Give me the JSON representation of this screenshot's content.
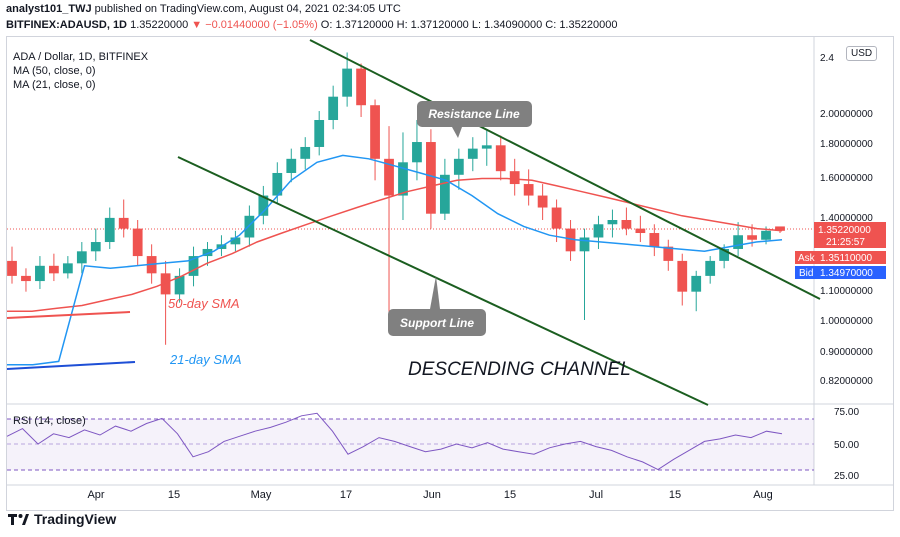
{
  "header": {
    "line1_user": "analyst101_TWJ",
    "line1_rest": " published on TradingView.com, August 04, 2021 02:34:05 UTC",
    "line2_symbol": "BITFINEX:ADAUSD, 1D",
    "line2_price": " 1.35220000 ",
    "line2_change": "▼ −0.01440000 (−1.05%)",
    "line2_ohlc": " O: 1.37120000 H: 1.37120000 L: 1.34090000 C: 1.35220000"
  },
  "legend": {
    "title": "ADA / Dollar, 1D, BITFINEX",
    "ma50": "MA (50, close, 0)",
    "ma21": "MA (21, close, 0)",
    "currency": "USD"
  },
  "annotations": {
    "resistance": "Resistance Line",
    "support": "Support Line",
    "sma50": "50-day SMA",
    "sma21": "21-day SMA",
    "channel": "DESCENDING CHANNEL"
  },
  "price_scale": {
    "ticks": [
      "2.4",
      "2.00000000",
      "1.80000000",
      "1.60000000",
      "1.40000000",
      "1.10000000",
      "1.00000000",
      "0.90000000",
      "0.82000000"
    ],
    "last_price": "1.35220000",
    "countdown": "21:25:57",
    "ask_label": "Ask",
    "ask_value": "1.35110000",
    "bid_label": "Bid",
    "bid_value": "1.34970000"
  },
  "rsi": {
    "label": "RSI (14, close)",
    "ticks": [
      "75.00",
      "50.00",
      "25.00"
    ]
  },
  "time_axis": [
    "Apr",
    "15",
    "May",
    "17",
    "Jun",
    "15",
    "Jul",
    "15",
    "Aug"
  ],
  "footer": {
    "brand": "TradingView"
  },
  "colors": {
    "up": "#26a69a",
    "down": "#ef5350",
    "ma50": "#ef5350",
    "ma21": "#2196f3",
    "channel": "#1b5e20",
    "rsi": "#7e57c2",
    "rsi_band": "#7e57c2"
  },
  "chart_data": {
    "type": "candlestick",
    "symbol": "BITFINEX:ADAUSD",
    "timeframe": "1D",
    "x_labels": [
      "Apr",
      "15",
      "May",
      "17",
      "Jun",
      "15",
      "Jul",
      "15",
      "Aug"
    ],
    "y_scale": "log",
    "last": {
      "open": 1.3712,
      "high": 1.3712,
      "low": 1.3409,
      "close": 1.3522,
      "change": -0.0144,
      "change_pct": -1.05
    },
    "ohlc_approx": [
      [
        1.22,
        1.28,
        1.13,
        1.16
      ],
      [
        1.16,
        1.19,
        1.1,
        1.14
      ],
      [
        1.14,
        1.24,
        1.11,
        1.2
      ],
      [
        1.2,
        1.25,
        1.14,
        1.17
      ],
      [
        1.17,
        1.24,
        1.15,
        1.21
      ],
      [
        1.21,
        1.3,
        1.17,
        1.26
      ],
      [
        1.26,
        1.36,
        1.22,
        1.3
      ],
      [
        1.3,
        1.46,
        1.27,
        1.41
      ],
      [
        1.41,
        1.5,
        1.32,
        1.36
      ],
      [
        1.36,
        1.4,
        1.2,
        1.24
      ],
      [
        1.24,
        1.29,
        1.13,
        1.17
      ],
      [
        1.17,
        1.22,
        0.92,
        1.09
      ],
      [
        1.09,
        1.19,
        1.06,
        1.16
      ],
      [
        1.16,
        1.28,
        1.12,
        1.24
      ],
      [
        1.24,
        1.3,
        1.2,
        1.27
      ],
      [
        1.27,
        1.33,
        1.24,
        1.29
      ],
      [
        1.29,
        1.35,
        1.26,
        1.32
      ],
      [
        1.32,
        1.47,
        1.28,
        1.42
      ],
      [
        1.42,
        1.57,
        1.38,
        1.52
      ],
      [
        1.52,
        1.7,
        1.48,
        1.64
      ],
      [
        1.64,
        1.78,
        1.59,
        1.72
      ],
      [
        1.72,
        1.85,
        1.66,
        1.79
      ],
      [
        1.79,
        2.02,
        1.74,
        1.96
      ],
      [
        1.96,
        2.2,
        1.9,
        2.12
      ],
      [
        2.12,
        2.46,
        2.05,
        2.33
      ],
      [
        2.33,
        2.37,
        1.98,
        2.06
      ],
      [
        2.06,
        2.1,
        1.6,
        1.72
      ],
      [
        1.72,
        1.92,
        0.98,
        1.52
      ],
      [
        1.52,
        1.88,
        1.4,
        1.7
      ],
      [
        1.7,
        1.96,
        1.6,
        1.82
      ],
      [
        1.82,
        1.9,
        1.36,
        1.43
      ],
      [
        1.43,
        1.72,
        1.4,
        1.63
      ],
      [
        1.63,
        1.78,
        1.55,
        1.72
      ],
      [
        1.72,
        1.85,
        1.65,
        1.78
      ],
      [
        1.78,
        1.9,
        1.68,
        1.8
      ],
      [
        1.8,
        1.86,
        1.6,
        1.65
      ],
      [
        1.65,
        1.72,
        1.52,
        1.58
      ],
      [
        1.58,
        1.66,
        1.47,
        1.52
      ],
      [
        1.52,
        1.58,
        1.4,
        1.46
      ],
      [
        1.46,
        1.5,
        1.3,
        1.36
      ],
      [
        1.36,
        1.4,
        1.22,
        1.26
      ],
      [
        1.26,
        1.36,
        1.0,
        1.32
      ],
      [
        1.32,
        1.42,
        1.27,
        1.38
      ],
      [
        1.38,
        1.45,
        1.32,
        1.4
      ],
      [
        1.4,
        1.46,
        1.33,
        1.36
      ],
      [
        1.36,
        1.42,
        1.3,
        1.34
      ],
      [
        1.34,
        1.38,
        1.24,
        1.28
      ],
      [
        1.28,
        1.31,
        1.18,
        1.22
      ],
      [
        1.22,
        1.25,
        1.05,
        1.1
      ],
      [
        1.1,
        1.18,
        1.03,
        1.16
      ],
      [
        1.16,
        1.24,
        1.13,
        1.22
      ],
      [
        1.22,
        1.29,
        1.19,
        1.27
      ],
      [
        1.27,
        1.39,
        1.24,
        1.33
      ],
      [
        1.33,
        1.38,
        1.28,
        1.31
      ],
      [
        1.31,
        1.37,
        1.29,
        1.35
      ],
      [
        1.37,
        1.37,
        1.34,
        1.35
      ]
    ],
    "series": [
      {
        "name": "MA (50, close, 0)",
        "values": [
          1.03,
          1.03,
          1.04,
          1.05,
          1.07,
          1.09,
          1.12,
          1.16,
          1.21,
          1.25,
          1.3,
          1.34,
          1.38,
          1.42,
          1.46,
          1.5,
          1.54,
          1.57,
          1.6,
          1.61,
          1.61,
          1.6,
          1.57,
          1.54,
          1.51,
          1.48,
          1.45,
          1.42,
          1.4,
          1.38,
          1.36,
          1.35
        ]
      },
      {
        "name": "MA (21, close, 0)",
        "values": [
          0.86,
          0.86,
          0.87,
          1.2,
          1.19,
          1.2,
          1.21,
          1.22,
          1.26,
          1.33,
          1.45,
          1.6,
          1.7,
          1.74,
          1.72,
          1.68,
          1.64,
          1.6,
          1.52,
          1.43,
          1.37,
          1.33,
          1.31,
          1.3,
          1.29,
          1.28,
          1.27,
          1.26,
          1.28,
          1.3,
          1.31
        ]
      },
      {
        "name": "RSI (14, close)",
        "values": [
          56,
          62,
          50,
          58,
          55,
          61,
          57,
          64,
          60,
          66,
          70,
          58,
          40,
          44,
          52,
          56,
          60,
          63,
          67,
          72,
          74,
          60,
          42,
          48,
          55,
          52,
          48,
          44,
          46,
          50,
          47,
          51,
          46,
          44,
          42,
          47,
          50,
          52,
          48,
          45,
          40,
          36,
          30,
          38,
          45,
          52,
          54,
          57,
          55,
          60,
          58
        ]
      }
    ],
    "channel_lines": [
      "Resistance Line",
      "Support Line"
    ],
    "rsi_levels": [
      70,
      50,
      30
    ]
  }
}
